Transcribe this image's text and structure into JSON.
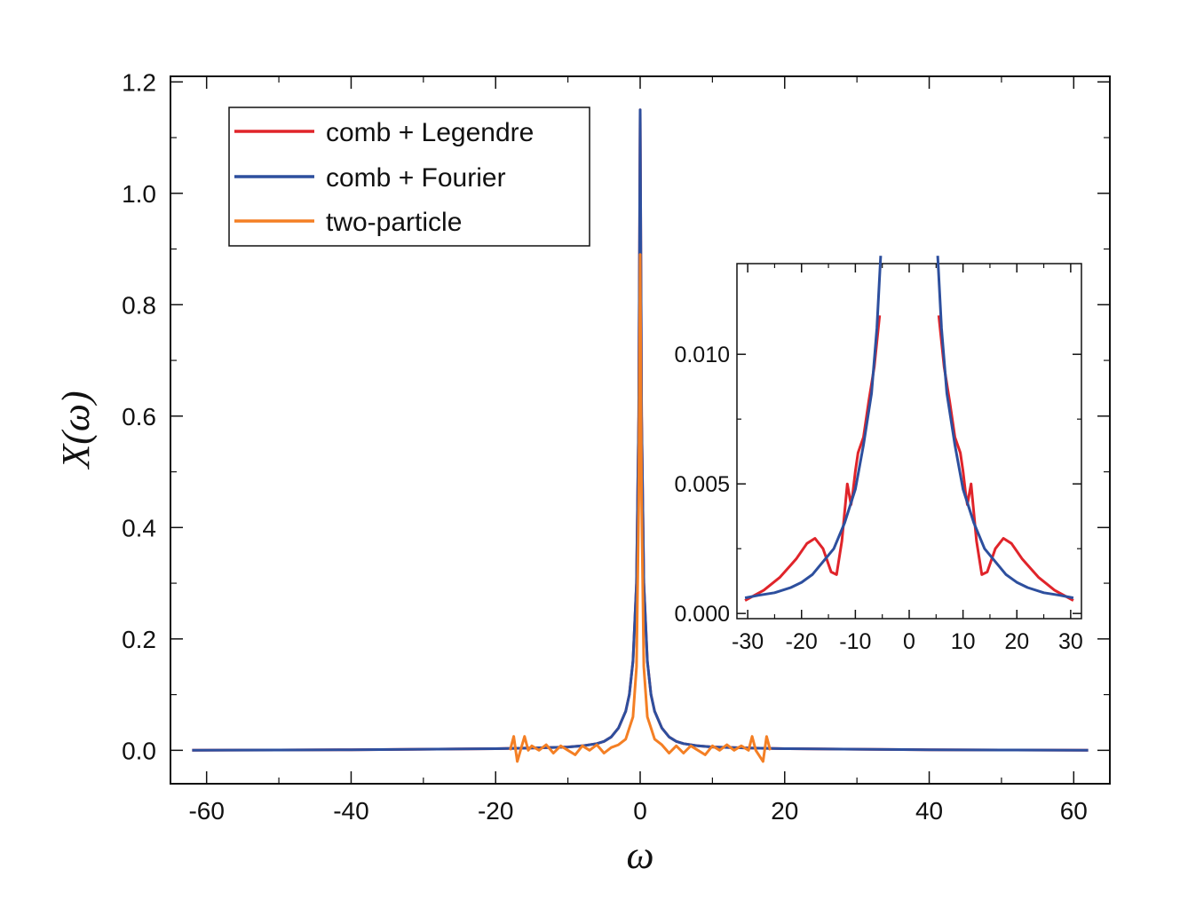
{
  "chart_data": {
    "type": "line",
    "xlabel": "ω",
    "ylabel": "X(ω)",
    "xlim": [
      -65,
      65
    ],
    "ylim": [
      -0.06,
      1.21
    ],
    "xticks": [
      "-60",
      "-40",
      "-20",
      "0",
      "20",
      "40",
      "60"
    ],
    "yticks": [
      "0.0",
      "0.2",
      "0.4",
      "0.6",
      "0.8",
      "1.0",
      "1.2"
    ],
    "xtick_values": [
      -60,
      -40,
      -20,
      0,
      20,
      40,
      60
    ],
    "ytick_values": [
      0.0,
      0.2,
      0.4,
      0.6,
      0.8,
      1.0,
      1.2
    ],
    "legend": {
      "placement": "top-left"
    },
    "colors": {
      "legendre": "#e0242a",
      "fourier": "#2d4f9e",
      "two_particle": "#f47f24"
    },
    "series": [
      {
        "name": "comb + Legendre",
        "x": [
          -62,
          -50,
          -40,
          -30,
          -20,
          -15,
          -10,
          -8,
          -6,
          -5,
          -4,
          -3,
          -2,
          -1.5,
          -1,
          -0.5,
          -0.2,
          0,
          0.2,
          0.5,
          1,
          1.5,
          2,
          3,
          4,
          5,
          6,
          8,
          10,
          15,
          20,
          30,
          40,
          50,
          62
        ],
        "y": [
          0.0,
          0.0005,
          0.001,
          0.002,
          0.003,
          0.004,
          0.006,
          0.008,
          0.012,
          0.016,
          0.024,
          0.04,
          0.07,
          0.1,
          0.16,
          0.3,
          0.6,
          1.15,
          0.6,
          0.3,
          0.16,
          0.1,
          0.07,
          0.04,
          0.024,
          0.016,
          0.012,
          0.008,
          0.006,
          0.004,
          0.003,
          0.002,
          0.001,
          0.0005,
          0.0
        ]
      },
      {
        "name": "comb + Fourier",
        "x": [
          -62,
          -50,
          -40,
          -30,
          -20,
          -15,
          -10,
          -8,
          -6,
          -5,
          -4,
          -3,
          -2,
          -1.5,
          -1,
          -0.5,
          -0.2,
          0,
          0.2,
          0.5,
          1,
          1.5,
          2,
          3,
          4,
          5,
          6,
          8,
          10,
          15,
          20,
          30,
          40,
          50,
          62
        ],
        "y": [
          0.0,
          0.0005,
          0.001,
          0.002,
          0.003,
          0.004,
          0.006,
          0.008,
          0.012,
          0.016,
          0.024,
          0.04,
          0.07,
          0.1,
          0.16,
          0.3,
          0.6,
          1.15,
          0.6,
          0.3,
          0.16,
          0.1,
          0.07,
          0.04,
          0.024,
          0.016,
          0.012,
          0.008,
          0.006,
          0.004,
          0.003,
          0.002,
          0.001,
          0.0005,
          0.0
        ]
      },
      {
        "name": "two-particle",
        "x": [
          -18,
          -17.5,
          -17,
          -16,
          -15.5,
          -15,
          -14,
          -13,
          -12,
          -11,
          -10,
          -9,
          -8,
          -7,
          -6,
          -5,
          -4,
          -3,
          -2,
          -1.5,
          -1,
          -0.5,
          -0.2,
          0,
          0.2,
          0.5,
          1,
          1.5,
          2,
          3,
          4,
          5,
          6,
          7,
          8,
          9,
          10,
          11,
          12,
          13,
          14,
          15,
          15.5,
          16,
          17,
          17.5,
          18
        ],
        "y": [
          0.0,
          0.025,
          -0.02,
          0.025,
          0.0,
          0.008,
          0.0,
          0.01,
          -0.005,
          0.008,
          0.0,
          -0.008,
          0.008,
          0.0,
          0.01,
          -0.005,
          0.005,
          0.01,
          0.02,
          0.04,
          0.06,
          0.15,
          0.45,
          0.89,
          0.45,
          0.15,
          0.06,
          0.04,
          0.02,
          0.01,
          -0.005,
          0.008,
          -0.005,
          0.008,
          0.0,
          -0.008,
          0.008,
          0.0,
          0.01,
          0.0,
          0.008,
          0.0,
          0.025,
          0.0,
          -0.02,
          0.025,
          0.0
        ]
      }
    ],
    "inset": {
      "type": "line",
      "xlim": [
        -32,
        32
      ],
      "ylim": [
        -0.0002,
        0.0135
      ],
      "xticks": [
        "-30",
        "-20",
        "-10",
        "0",
        "10",
        "20",
        "30"
      ],
      "yticks": [
        "0.000",
        "0.005",
        "0.010"
      ],
      "xtick_values": [
        -30,
        -20,
        -10,
        0,
        10,
        20,
        30
      ],
      "ytick_values": [
        0.0,
        0.005,
        0.01
      ],
      "series": [
        {
          "name": "comb + Legendre",
          "x": [
            -30.5,
            -27,
            -24,
            -21,
            -19,
            -17.5,
            -16,
            -14.5,
            -13.5,
            -12.5,
            -11.5,
            -10.8,
            -10.5,
            -10,
            -9.5,
            -8.5,
            -7.5,
            -6.5,
            -5.5,
            5.5,
            6.5,
            7.5,
            8.5,
            9.5,
            10,
            10.5,
            10.8,
            11.5,
            12.5,
            13.5,
            14.5,
            16,
            17.5,
            19,
            21,
            24,
            27,
            30.5
          ],
          "y": [
            0.0005,
            0.0009,
            0.0014,
            0.0021,
            0.0027,
            0.0029,
            0.0025,
            0.0016,
            0.0015,
            0.0028,
            0.005,
            0.0042,
            0.0046,
            0.0055,
            0.0062,
            0.0068,
            0.0082,
            0.0095,
            0.0115,
            0.0115,
            0.0095,
            0.0082,
            0.0068,
            0.0062,
            0.0055,
            0.0046,
            0.0042,
            0.005,
            0.0028,
            0.0015,
            0.0016,
            0.0025,
            0.0029,
            0.0027,
            0.0021,
            0.0014,
            0.0009,
            0.0005
          ]
        },
        {
          "name": "comb + Fourier",
          "x": [
            -30.5,
            -28,
            -25,
            -22,
            -20,
            -18,
            -16,
            -14,
            -12,
            -10,
            -8.5,
            -7,
            -6,
            -5.3,
            5.3,
            6,
            7,
            8.5,
            10,
            12,
            14,
            16,
            18,
            20,
            22,
            25,
            28,
            30.5
          ],
          "y": [
            0.0006,
            0.0007,
            0.0008,
            0.001,
            0.0012,
            0.0015,
            0.002,
            0.0025,
            0.0035,
            0.0048,
            0.0065,
            0.0085,
            0.011,
            0.0138,
            0.0138,
            0.011,
            0.0085,
            0.0065,
            0.0048,
            0.0035,
            0.0025,
            0.002,
            0.0015,
            0.0012,
            0.001,
            0.0008,
            0.0007,
            0.0006
          ]
        }
      ]
    }
  }
}
